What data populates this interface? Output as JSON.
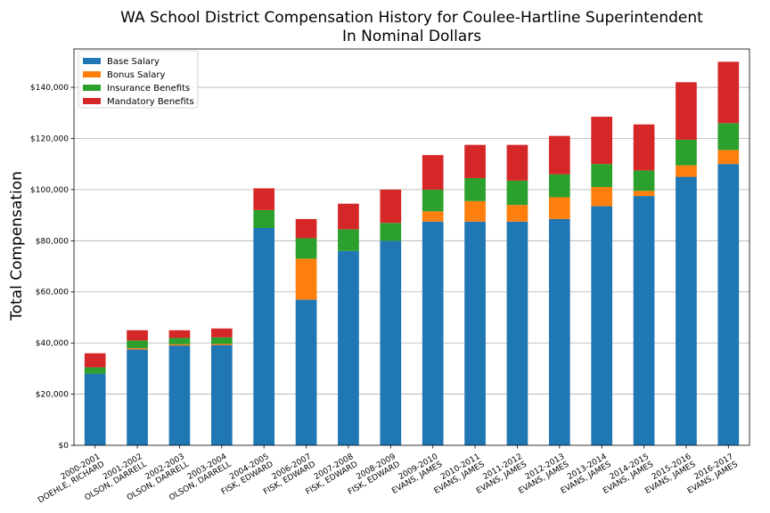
{
  "chart_data": {
    "type": "bar",
    "stacked": true,
    "title": "WA School District Compensation History for Coulee-Hartline Superintendent",
    "subtitle": "In Nominal Dollars",
    "xlabel": "",
    "ylabel": "Total Compensation",
    "ylim": [
      0,
      155000
    ],
    "yticks": [
      0,
      20000,
      40000,
      60000,
      80000,
      100000,
      120000,
      140000
    ],
    "ytick_labels": [
      "$0",
      "$20,000",
      "$40,000",
      "$60,000",
      "$80,000",
      "$100,000",
      "$120,000",
      "$140,000"
    ],
    "grid": "horizontal",
    "legend_position": "top-left",
    "categories": [
      [
        "2000-2001",
        "DOEHLE, RICHARD"
      ],
      [
        "2001-2002",
        "OLSON, DARRELL"
      ],
      [
        "2002-2003",
        "OLSON, DARRELL"
      ],
      [
        "2003-2004",
        "OLSON, DARRELL"
      ],
      [
        "2004-2005",
        "FISK, EDWARD"
      ],
      [
        "2006-2007",
        "FISK, EDWARD"
      ],
      [
        "2007-2008",
        "FISK, EDWARD"
      ],
      [
        "2008-2009",
        "FISK, EDWARD"
      ],
      [
        "2009-2010",
        "EVANS, JAMES"
      ],
      [
        "2010-2011",
        "EVANS, JAMES"
      ],
      [
        "2011-2012",
        "EVANS, JAMES"
      ],
      [
        "2012-2013",
        "EVANS, JAMES"
      ],
      [
        "2013-2014",
        "EVANS, JAMES"
      ],
      [
        "2014-2015",
        "EVANS, JAMES"
      ],
      [
        "2015-2016",
        "EVANS, JAMES"
      ],
      [
        "2016-2017",
        "EVANS, JAMES"
      ]
    ],
    "series": [
      {
        "name": "Base Salary",
        "color": "#1f77b4",
        "values": [
          28000,
          37500,
          39000,
          39200,
          85000,
          57000,
          76000,
          80000,
          87500,
          87500,
          87500,
          88500,
          93500,
          97500,
          105000,
          110000
        ]
      },
      {
        "name": "Bonus Salary",
        "color": "#ff7f0e",
        "values": [
          0,
          500,
          500,
          500,
          0,
          16000,
          0,
          0,
          4000,
          8000,
          6500,
          8500,
          7500,
          2000,
          4500,
          5500
        ]
      },
      {
        "name": "Insurance Benefits",
        "color": "#2ca02c",
        "values": [
          2500,
          3000,
          2500,
          2500,
          7000,
          8000,
          8500,
          7000,
          8500,
          9000,
          9500,
          9000,
          9000,
          8000,
          10000,
          10500
        ]
      },
      {
        "name": "Mandatory Benefits",
        "color": "#d62728",
        "values": [
          5500,
          4000,
          3000,
          3500,
          8500,
          7500,
          10000,
          13000,
          13500,
          13000,
          14000,
          15000,
          18500,
          18000,
          22500,
          24000
        ]
      }
    ]
  }
}
